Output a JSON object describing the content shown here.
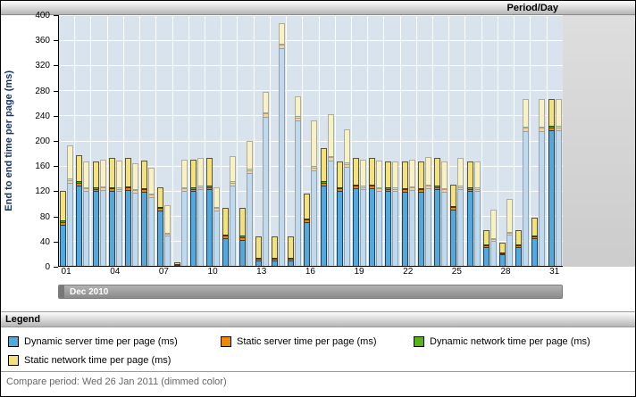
{
  "header": {
    "title": "Period/Day"
  },
  "chart_data": {
    "type": "bar",
    "stacked": true,
    "title": "Period/Day",
    "ylabel": "End to end time per page (ms)",
    "xlabel": "Dec 2010",
    "ylim": [
      0,
      400
    ],
    "yticks": [
      0,
      40,
      80,
      120,
      160,
      200,
      240,
      280,
      320,
      360,
      400
    ],
    "x_labels": [
      "01",
      "04",
      "07",
      "10",
      "13",
      "16",
      "19",
      "22",
      "25",
      "28",
      "31"
    ],
    "legend_position": "bottom",
    "grid": true,
    "series": [
      {
        "key": "dynamic_server",
        "name": "Dynamic server time per page (ms)",
        "color": "#55A8DC",
        "dimmed_color": "#BFDAEE"
      },
      {
        "key": "static_server",
        "name": "Static server time per page (ms)",
        "color": "#EE8800",
        "dimmed_color": "#F3D5A5"
      },
      {
        "key": "dynamic_network",
        "name": "Dynamic network time per page (ms)",
        "color": "#55B417",
        "dimmed_color": "#CBE6B8"
      },
      {
        "key": "static_network",
        "name": "Static network time per page (ms)",
        "color": "#F2E17C",
        "dimmed_color": "#F8F1C6"
      }
    ],
    "value_order": [
      "dynamic_server",
      "static_server",
      "dynamic_network",
      "static_network"
    ],
    "days": [
      {
        "day": "01",
        "current": [
          66,
          4,
          2,
          48
        ],
        "compare": [
          132,
          5,
          2,
          53
        ]
      },
      {
        "day": "02",
        "current": [
          128,
          5,
          2,
          41
        ],
        "compare": [
          120,
          4,
          2,
          40
        ]
      },
      {
        "day": "03",
        "current": [
          119,
          4,
          2,
          41
        ],
        "compare": [
          121,
          4,
          2,
          43
        ]
      },
      {
        "day": "04",
        "current": [
          120,
          4,
          2,
          46
        ],
        "compare": [
          119,
          4,
          2,
          43
        ]
      },
      {
        "day": "05",
        "current": [
          121,
          4,
          2,
          45
        ],
        "compare": [
          117,
          4,
          2,
          41
        ]
      },
      {
        "day": "06",
        "current": [
          118,
          4,
          2,
          44
        ],
        "compare": [
          110,
          4,
          2,
          40
        ]
      },
      {
        "day": "07",
        "current": [
          88,
          4,
          2,
          32
        ],
        "compare": [
          48,
          3,
          1,
          44
        ]
      },
      {
        "day": "08",
        "current": [
          2,
          1,
          0,
          2
        ],
        "compare": [
          120,
          4,
          2,
          44
        ]
      },
      {
        "day": "09",
        "current": [
          119,
          4,
          2,
          45
        ],
        "compare": [
          122,
          4,
          2,
          44
        ]
      },
      {
        "day": "10",
        "current": [
          122,
          4,
          2,
          44
        ],
        "compare": [
          88,
          4,
          2,
          32
        ]
      },
      {
        "day": "11",
        "current": [
          44,
          4,
          2,
          42
        ],
        "compare": [
          128,
          5,
          2,
          40
        ]
      },
      {
        "day": "12",
        "current": [
          42,
          4,
          2,
          44
        ],
        "compare": [
          148,
          5,
          2,
          45
        ]
      },
      {
        "day": "13",
        "current": [
          8,
          3,
          1,
          34
        ],
        "compare": [
          238,
          5,
          2,
          32
        ]
      },
      {
        "day": "14",
        "current": [
          8,
          3,
          1,
          34
        ],
        "compare": [
          348,
          5,
          2,
          32
        ]
      },
      {
        "day": "15",
        "current": [
          8,
          3,
          1,
          34
        ],
        "compare": [
          232,
          5,
          2,
          31
        ]
      },
      {
        "day": "16",
        "current": [
          70,
          4,
          2,
          40
        ],
        "compare": [
          152,
          5,
          2,
          73
        ]
      },
      {
        "day": "17",
        "current": [
          128,
          5,
          2,
          53
        ],
        "compare": [
          168,
          5,
          2,
          67
        ]
      },
      {
        "day": "18",
        "current": [
          120,
          4,
          2,
          40
        ],
        "compare": [
          158,
          5,
          2,
          53
        ]
      },
      {
        "day": "19",
        "current": [
          124,
          4,
          2,
          42
        ],
        "compare": [
          122,
          4,
          2,
          42
        ]
      },
      {
        "day": "20",
        "current": [
          124,
          4,
          2,
          42
        ],
        "compare": [
          120,
          4,
          2,
          42
        ]
      },
      {
        "day": "21",
        "current": [
          119,
          4,
          2,
          41
        ],
        "compare": [
          119,
          4,
          2,
          41
        ]
      },
      {
        "day": "22",
        "current": [
          118,
          4,
          2,
          42
        ],
        "compare": [
          121,
          4,
          2,
          43
        ]
      },
      {
        "day": "23",
        "current": [
          118,
          4,
          2,
          42
        ],
        "compare": [
          124,
          4,
          2,
          44
        ]
      },
      {
        "day": "24",
        "current": [
          122,
          4,
          2,
          44
        ],
        "compare": [
          118,
          4,
          2,
          42
        ]
      },
      {
        "day": "25",
        "current": [
          90,
          4,
          2,
          34
        ],
        "compare": [
          122,
          4,
          2,
          44
        ]
      },
      {
        "day": "26",
        "current": [
          119,
          4,
          2,
          41
        ],
        "compare": [
          119,
          4,
          2,
          41
        ]
      },
      {
        "day": "27",
        "current": [
          30,
          3,
          1,
          22
        ],
        "compare": [
          40,
          3,
          1,
          46
        ]
      },
      {
        "day": "28",
        "current": [
          18,
          2,
          1,
          15
        ],
        "compare": [
          50,
          3,
          1,
          52
        ]
      },
      {
        "day": "29",
        "current": [
          30,
          3,
          1,
          22
        ],
        "compare": [
          215,
          5,
          2,
          44
        ]
      },
      {
        "day": "30",
        "current": [
          44,
          3,
          1,
          28
        ],
        "compare": [
          215,
          5,
          2,
          44
        ]
      },
      {
        "day": "31",
        "current": [
          216,
          5,
          2,
          43
        ],
        "compare": [
          216,
          5,
          2,
          43
        ]
      }
    ]
  },
  "x_scrollbar": {
    "label": "Dec 2010"
  },
  "legend": {
    "title": "Legend",
    "items": [
      {
        "label": "Dynamic server time per page (ms)",
        "color": "#55A8DC"
      },
      {
        "label": "Static server time per page (ms)",
        "color": "#EE8800"
      },
      {
        "label": "Dynamic network time per page (ms)",
        "color": "#55B417"
      },
      {
        "label": "Static network time per page (ms)",
        "color": "#F2E17C"
      }
    ]
  },
  "footer": {
    "compare_note": "Compare period: Wed 26 Jan 2011 (dimmed color)"
  }
}
